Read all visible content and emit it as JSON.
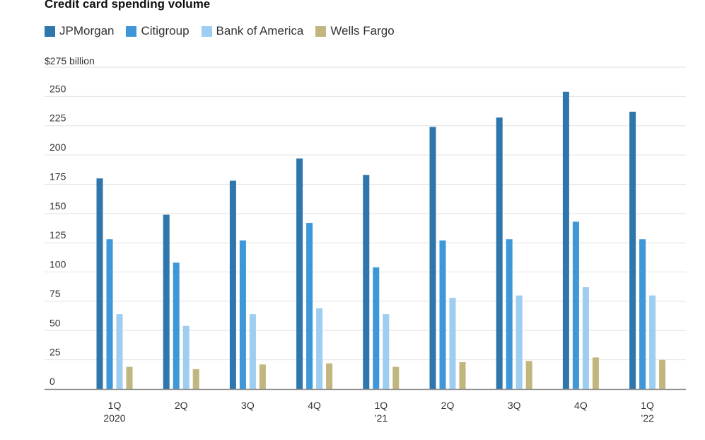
{
  "chart_data": {
    "type": "bar",
    "title": "Credit card spending volume",
    "ylabel": "",
    "xlabel": "",
    "unit_label": "$275 billion",
    "ylim": [
      0,
      275
    ],
    "yticks": [
      0,
      25,
      50,
      75,
      100,
      125,
      150,
      175,
      200,
      225,
      250
    ],
    "grid": true,
    "legend_position": "top-left",
    "categories": [
      [
        "1Q",
        "2020"
      ],
      [
        "2Q",
        ""
      ],
      [
        "3Q",
        ""
      ],
      [
        "4Q",
        ""
      ],
      [
        "1Q",
        "’21"
      ],
      [
        "2Q",
        ""
      ],
      [
        "3Q",
        ""
      ],
      [
        "4Q",
        ""
      ],
      [
        "1Q",
        "’22"
      ]
    ],
    "series": [
      {
        "name": "JPMorgan",
        "color": "#2f76ac",
        "values": [
          180,
          149,
          178,
          197,
          183,
          224,
          232,
          254,
          237
        ]
      },
      {
        "name": "Citigroup",
        "color": "#3e97d9",
        "values": [
          128,
          108,
          127,
          142,
          104,
          127,
          128,
          143,
          128
        ]
      },
      {
        "name": "Bank of America",
        "color": "#9dcdf0",
        "values": [
          64,
          54,
          64,
          69,
          64,
          78,
          80,
          87,
          80
        ]
      },
      {
        "name": "Wells Fargo",
        "color": "#c0b67e",
        "values": [
          19,
          17,
          21,
          22,
          19,
          23,
          24,
          27,
          25
        ]
      }
    ]
  }
}
